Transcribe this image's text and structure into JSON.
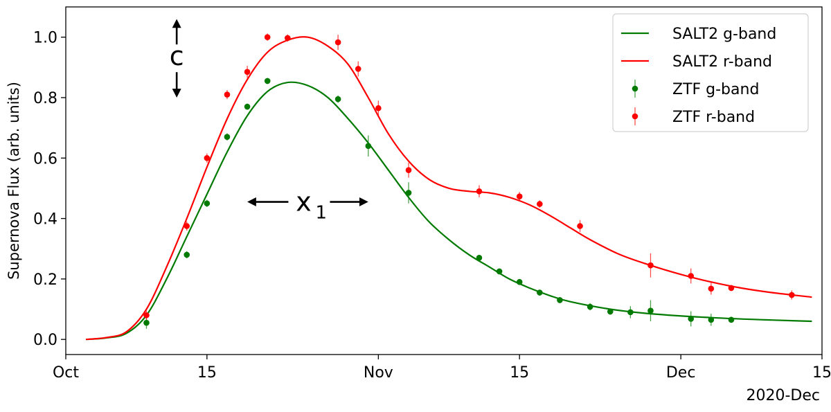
{
  "chart_data": {
    "type": "line",
    "title": "",
    "xlabel": "",
    "ylabel": "Supernova Flux (arb. units)",
    "x_axis_type": "date",
    "xlim": [
      "2020-10-01",
      "2020-12-15"
    ],
    "ylim": [
      -0.05,
      1.1
    ],
    "x_ticks": [
      {
        "date": "2020-10-01",
        "label": "Oct"
      },
      {
        "date": "2020-10-15",
        "label": "15"
      },
      {
        "date": "2020-11-01",
        "label": "Nov"
      },
      {
        "date": "2020-11-15",
        "label": "15"
      },
      {
        "date": "2020-12-01",
        "label": "Dec"
      },
      {
        "date": "2020-12-15",
        "label": "15"
      }
    ],
    "x_offset_label": "2020-Dec",
    "y_ticks": [
      {
        "value": 0.0,
        "label": "0.0"
      },
      {
        "value": 0.2,
        "label": "0.2"
      },
      {
        "value": 0.4,
        "label": "0.4"
      },
      {
        "value": 0.6,
        "label": "0.6"
      },
      {
        "value": 0.8,
        "label": "0.8"
      },
      {
        "value": 1.0,
        "label": "1.0"
      }
    ],
    "grid": false,
    "legend_position": "top-right",
    "series": [
      {
        "name": "SALT2 g-band",
        "kind": "line",
        "color": "#007a00",
        "points": [
          {
            "x": "2020-10-03",
            "y": 0.0
          },
          {
            "x": "2020-10-05",
            "y": 0.005
          },
          {
            "x": "2020-10-07",
            "y": 0.02
          },
          {
            "x": "2020-10-09",
            "y": 0.08
          },
          {
            "x": "2020-10-11",
            "y": 0.2
          },
          {
            "x": "2020-10-13",
            "y": 0.34
          },
          {
            "x": "2020-10-15",
            "y": 0.48
          },
          {
            "x": "2020-10-17",
            "y": 0.62
          },
          {
            "x": "2020-10-19",
            "y": 0.74
          },
          {
            "x": "2020-10-21",
            "y": 0.82
          },
          {
            "x": "2020-10-23",
            "y": 0.85
          },
          {
            "x": "2020-10-25",
            "y": 0.84
          },
          {
            "x": "2020-10-27",
            "y": 0.8
          },
          {
            "x": "2020-10-29",
            "y": 0.73
          },
          {
            "x": "2020-10-31",
            "y": 0.65
          },
          {
            "x": "2020-11-02",
            "y": 0.56
          },
          {
            "x": "2020-11-04",
            "y": 0.47
          },
          {
            "x": "2020-11-06",
            "y": 0.39
          },
          {
            "x": "2020-11-08",
            "y": 0.33
          },
          {
            "x": "2020-11-10",
            "y": 0.28
          },
          {
            "x": "2020-11-12",
            "y": 0.24
          },
          {
            "x": "2020-11-14",
            "y": 0.2
          },
          {
            "x": "2020-11-16",
            "y": 0.17
          },
          {
            "x": "2020-11-18",
            "y": 0.145
          },
          {
            "x": "2020-11-20",
            "y": 0.125
          },
          {
            "x": "2020-11-24",
            "y": 0.1
          },
          {
            "x": "2020-11-28",
            "y": 0.085
          },
          {
            "x": "2020-12-04",
            "y": 0.072
          },
          {
            "x": "2020-12-10",
            "y": 0.064
          },
          {
            "x": "2020-12-14",
            "y": 0.06
          }
        ]
      },
      {
        "name": "SALT2 r-band",
        "kind": "line",
        "color": "#ff0000",
        "points": [
          {
            "x": "2020-10-03",
            "y": 0.0
          },
          {
            "x": "2020-10-05",
            "y": 0.006
          },
          {
            "x": "2020-10-07",
            "y": 0.025
          },
          {
            "x": "2020-10-09",
            "y": 0.1
          },
          {
            "x": "2020-10-11",
            "y": 0.24
          },
          {
            "x": "2020-10-13",
            "y": 0.4
          },
          {
            "x": "2020-10-15",
            "y": 0.57
          },
          {
            "x": "2020-10-17",
            "y": 0.73
          },
          {
            "x": "2020-10-19",
            "y": 0.86
          },
          {
            "x": "2020-10-21",
            "y": 0.95
          },
          {
            "x": "2020-10-23",
            "y": 0.99
          },
          {
            "x": "2020-10-25",
            "y": 1.0
          },
          {
            "x": "2020-10-27",
            "y": 0.97
          },
          {
            "x": "2020-10-29",
            "y": 0.91
          },
          {
            "x": "2020-10-31",
            "y": 0.8
          },
          {
            "x": "2020-11-02",
            "y": 0.68
          },
          {
            "x": "2020-11-04",
            "y": 0.59
          },
          {
            "x": "2020-11-06",
            "y": 0.53
          },
          {
            "x": "2020-11-08",
            "y": 0.5
          },
          {
            "x": "2020-11-10",
            "y": 0.49
          },
          {
            "x": "2020-11-12",
            "y": 0.485
          },
          {
            "x": "2020-11-14",
            "y": 0.47
          },
          {
            "x": "2020-11-16",
            "y": 0.445
          },
          {
            "x": "2020-11-18",
            "y": 0.41
          },
          {
            "x": "2020-11-20",
            "y": 0.37
          },
          {
            "x": "2020-11-22",
            "y": 0.33
          },
          {
            "x": "2020-11-25",
            "y": 0.28
          },
          {
            "x": "2020-11-28",
            "y": 0.245
          },
          {
            "x": "2020-12-01",
            "y": 0.215
          },
          {
            "x": "2020-12-04",
            "y": 0.19
          },
          {
            "x": "2020-12-07",
            "y": 0.17
          },
          {
            "x": "2020-12-10",
            "y": 0.155
          },
          {
            "x": "2020-12-14",
            "y": 0.14
          }
        ]
      },
      {
        "name": "ZTF g-band",
        "kind": "errorbar",
        "color": "#007a00",
        "points": [
          {
            "x": "2020-10-09",
            "y": 0.055,
            "err": 0.02
          },
          {
            "x": "2020-10-13",
            "y": 0.28,
            "err": 0.012
          },
          {
            "x": "2020-10-15",
            "y": 0.45,
            "err": 0.012
          },
          {
            "x": "2020-10-17",
            "y": 0.67,
            "err": 0.012
          },
          {
            "x": "2020-10-19",
            "y": 0.77,
            "err": 0.01
          },
          {
            "x": "2020-10-21",
            "y": 0.855,
            "err": 0.01
          },
          {
            "x": "2020-10-28",
            "y": 0.795,
            "err": 0.012
          },
          {
            "x": "2020-10-31",
            "y": 0.64,
            "err": 0.035
          },
          {
            "x": "2020-11-04",
            "y": 0.485,
            "err": 0.035
          },
          {
            "x": "2020-11-11",
            "y": 0.27,
            "err": 0.01
          },
          {
            "x": "2020-11-13",
            "y": 0.225,
            "err": 0.01
          },
          {
            "x": "2020-11-15",
            "y": 0.19,
            "err": 0.01
          },
          {
            "x": "2020-11-17",
            "y": 0.155,
            "err": 0.01
          },
          {
            "x": "2020-11-19",
            "y": 0.13,
            "err": 0.01
          },
          {
            "x": "2020-11-22",
            "y": 0.108,
            "err": 0.012
          },
          {
            "x": "2020-11-24",
            "y": 0.092,
            "err": 0.01
          },
          {
            "x": "2020-11-26",
            "y": 0.09,
            "err": 0.02
          },
          {
            "x": "2020-11-28",
            "y": 0.095,
            "err": 0.035
          },
          {
            "x": "2020-12-02",
            "y": 0.068,
            "err": 0.025
          },
          {
            "x": "2020-12-04",
            "y": 0.065,
            "err": 0.02
          },
          {
            "x": "2020-12-06",
            "y": 0.065,
            "err": 0.01
          }
        ]
      },
      {
        "name": "ZTF r-band",
        "kind": "errorbar",
        "color": "#ff0000",
        "points": [
          {
            "x": "2020-10-09",
            "y": 0.08,
            "err": 0.015
          },
          {
            "x": "2020-10-13",
            "y": 0.375,
            "err": 0.015
          },
          {
            "x": "2020-10-15",
            "y": 0.6,
            "err": 0.015
          },
          {
            "x": "2020-10-17",
            "y": 0.81,
            "err": 0.015
          },
          {
            "x": "2020-10-19",
            "y": 0.885,
            "err": 0.02
          },
          {
            "x": "2020-10-21",
            "y": 1.0,
            "err": 0.012
          },
          {
            "x": "2020-10-23",
            "y": 0.997,
            "err": 0.012
          },
          {
            "x": "2020-10-28",
            "y": 0.983,
            "err": 0.025
          },
          {
            "x": "2020-10-30",
            "y": 0.895,
            "err": 0.025
          },
          {
            "x": "2020-11-01",
            "y": 0.765,
            "err": 0.025
          },
          {
            "x": "2020-11-04",
            "y": 0.56,
            "err": 0.025
          },
          {
            "x": "2020-11-11",
            "y": 0.49,
            "err": 0.02
          },
          {
            "x": "2020-11-15",
            "y": 0.473,
            "err": 0.015
          },
          {
            "x": "2020-11-17",
            "y": 0.448,
            "err": 0.012
          },
          {
            "x": "2020-11-21",
            "y": 0.375,
            "err": 0.02
          },
          {
            "x": "2020-11-28",
            "y": 0.245,
            "err": 0.04
          },
          {
            "x": "2020-12-02",
            "y": 0.21,
            "err": 0.025
          },
          {
            "x": "2020-12-04",
            "y": 0.168,
            "err": 0.02
          },
          {
            "x": "2020-12-06",
            "y": 0.17,
            "err": 0.01
          },
          {
            "x": "2020-12-12",
            "y": 0.147,
            "err": 0.015
          }
        ]
      }
    ],
    "annotations": [
      {
        "text": "c",
        "kind": "vertical-double-arrow",
        "x": "2020-10-12",
        "y_from": 0.8,
        "y_to": 1.06
      },
      {
        "text": "x",
        "subscript": "1",
        "kind": "horizontal-double-arrow",
        "x_from": "2020-10-19",
        "x_to": "2020-10-31",
        "y": 0.455
      }
    ]
  }
}
